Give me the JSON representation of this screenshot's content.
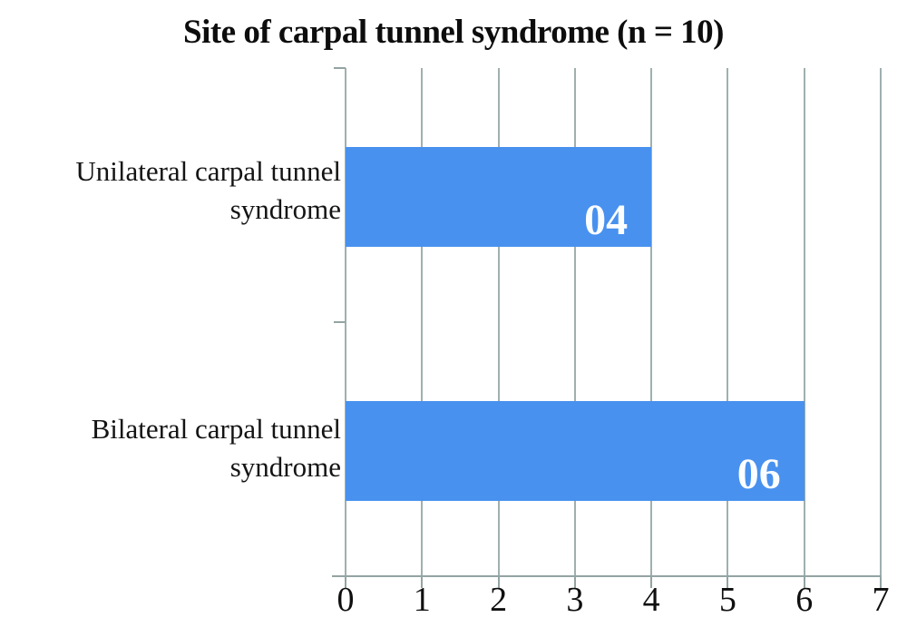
{
  "chart_data": {
    "type": "bar",
    "orientation": "horizontal",
    "title": "Site of carpal tunnel syndrome (n = 10)",
    "categories": [
      "Unilateral carpal tunnel syndrome",
      "Bilateral carpal tunnel syndrome"
    ],
    "category_lines": [
      [
        "Unilateral carpal tunnel",
        "syndrome"
      ],
      [
        "Bilateral carpal tunnel",
        "syndrome"
      ]
    ],
    "values": [
      4,
      6
    ],
    "value_labels": [
      "04",
      "06"
    ],
    "xlabel": "",
    "ylabel": "",
    "xlim": [
      0,
      7
    ],
    "x_ticks": [
      "0",
      "1",
      "2",
      "3",
      "4",
      "5",
      "6",
      "7"
    ],
    "grid": "vertical gridlines on",
    "legend": "none",
    "colors": {
      "bar": "#4891ee",
      "grid": "#9fb0af",
      "axis": "#93a4a3",
      "text": "#141414",
      "value_label": "#fbfdff",
      "background": "#ffffff"
    }
  }
}
